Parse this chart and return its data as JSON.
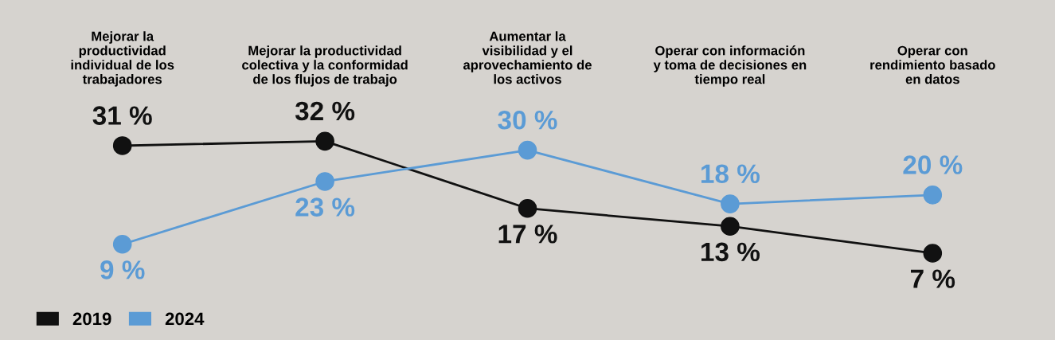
{
  "chart_data": {
    "type": "line",
    "categories": [
      "Mejorar la\nproductividad\nindividual de los\ntrabajadores",
      "Mejorar la productividad\ncolectiva y la conformidad\nde los flujos de trabajo",
      "Aumentar la\nvisibilidad y el\naprovechamiento de\nlos activos",
      "Operar con información\ny toma de decisiones en\ntiempo real",
      "Operar con\nrendimiento basado\nen datos"
    ],
    "series": [
      {
        "name": "2019",
        "color": "#111111",
        "values": [
          31,
          32,
          17,
          13,
          7
        ],
        "value_labels": [
          "31 %",
          "32 %",
          "17 %",
          "13 %",
          "7 %"
        ]
      },
      {
        "name": "2024",
        "color": "#5b9bd5",
        "values": [
          9,
          23,
          30,
          18,
          20
        ],
        "value_labels": [
          "9 %",
          "23 %",
          "30 %",
          "18 %",
          "20 %"
        ]
      }
    ],
    "marker": "circle",
    "line_style": "solid",
    "grid": false,
    "legend": "bottom left"
  }
}
